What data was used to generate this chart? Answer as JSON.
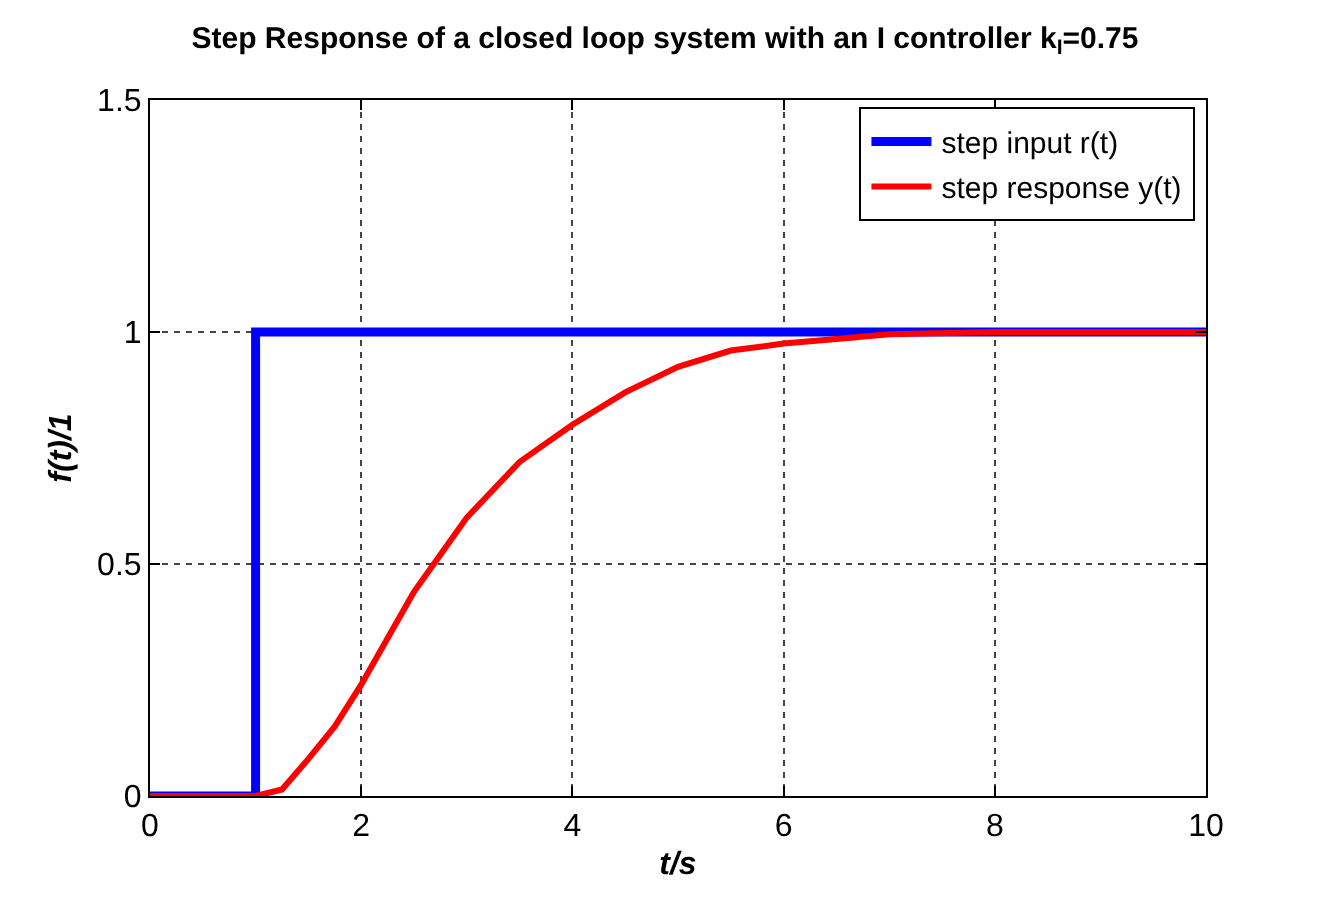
{
  "chart_data": {
    "type": "line",
    "title": "Step Response of a closed loop system with an I controller k$_{I}$=0.75",
    "xlabel": "t/s",
    "ylabel": "f(t)/1",
    "series": [
      {
        "name": "step input r(t)",
        "color": "#0000ff",
        "x": [
          0,
          1,
          1,
          10
        ],
        "values": [
          0,
          0,
          1,
          1
        ]
      },
      {
        "name": "step response y(t)",
        "color": "#ff0000",
        "x": [
          0,
          1,
          1.25,
          1.5,
          1.75,
          2,
          2.25,
          2.5,
          2.75,
          3,
          3.25,
          3.5,
          4,
          4.5,
          5,
          5.5,
          6,
          6.5,
          7,
          8,
          9,
          10
        ],
        "values": [
          0,
          0,
          0.014,
          0.08,
          0.15,
          0.24,
          0.34,
          0.44,
          0.52,
          0.6,
          0.66,
          0.72,
          0.8,
          0.87,
          0.925,
          0.96,
          0.975,
          0.985,
          0.995,
          1,
          1,
          1
        ]
      }
    ],
    "xlim": [
      0,
      10
    ],
    "ylim": [
      0,
      1.5
    ],
    "xticks": [
      0,
      2,
      4,
      6,
      8,
      10
    ],
    "yticks": [
      0,
      0.5,
      1,
      1.5
    ],
    "grid": true,
    "legend": "top right",
    "line_style": "solid",
    "marker": "none"
  }
}
